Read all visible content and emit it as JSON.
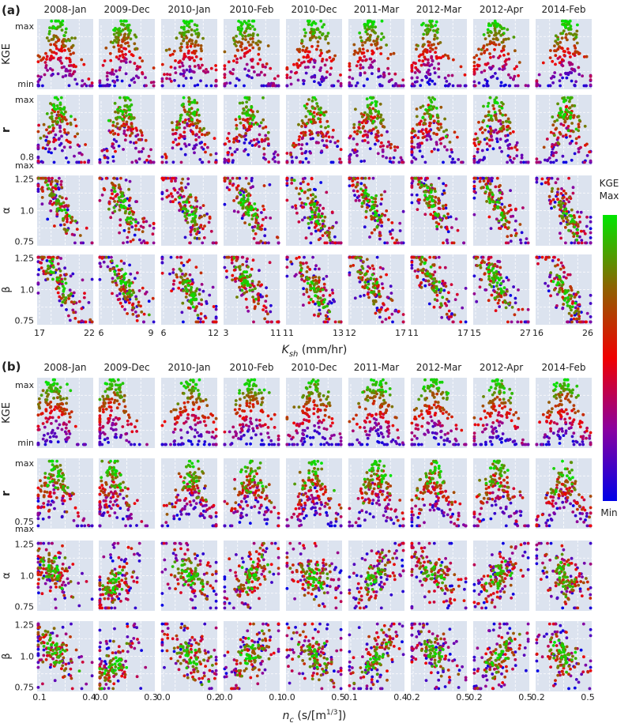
{
  "chart_data": [
    {
      "type": "scatter",
      "panel_label": "(a)",
      "columns": [
        "2008-Jan",
        "2009-Dec",
        "2010-Jan",
        "2010-Feb",
        "2010-Dec",
        "2011-Mar",
        "2012-Mar",
        "2012-Apr",
        "2014-Feb"
      ],
      "parameter": "Ksh",
      "xlabel_main": "K",
      "xlabel_sub": "sh",
      "xlabel_unit": " (mm/hr)",
      "x_ranges": [
        [
          17,
          22
        ],
        [
          6,
          9
        ],
        [
          6,
          12
        ],
        [
          3,
          11
        ],
        [
          11,
          13
        ],
        [
          12,
          17
        ],
        [
          11,
          17
        ],
        [
          15,
          27
        ],
        [
          16,
          26
        ]
      ],
      "x_optima": [
        0.38,
        0.45,
        0.5,
        0.42,
        0.5,
        0.4,
        0.35,
        0.4,
        0.55
      ],
      "rows": [
        {
          "metric": "KGE",
          "ticks": [
            {
              "label": "max",
              "pos": 0.9
            },
            {
              "label": "min",
              "pos": 0.08
            }
          ]
        },
        {
          "metric": "r",
          "ticks": [
            {
              "label": "max",
              "pos": 0.93
            },
            {
              "label": "0.8",
              "pos": 0.12
            },
            {
              "label": "max",
              "pos": 0.0
            }
          ]
        },
        {
          "metric": "α",
          "ticks": [
            {
              "label": "1.25",
              "pos": 0.95
            },
            {
              "label": "1.0",
              "pos": 0.5
            },
            {
              "label": "0.75",
              "pos": 0.06
            }
          ]
        },
        {
          "metric": "β",
          "ticks": [
            {
              "label": "1.25",
              "pos": 0.95
            },
            {
              "label": "1.0",
              "pos": 0.5
            },
            {
              "label": "0.75",
              "pos": 0.06
            }
          ]
        }
      ]
    },
    {
      "type": "scatter",
      "panel_label": "(b)",
      "columns": [
        "2008-Jan",
        "2009-Dec",
        "2010-Jan",
        "2010-Feb",
        "2010-Dec",
        "2011-Mar",
        "2012-Mar",
        "2012-Apr",
        "2014-Feb"
      ],
      "parameter": "nc",
      "xlabel_main": "n",
      "xlabel_sub": "c",
      "xlabel_unit": " (s/[m",
      "xlabel_sup": "1/3",
      "xlabel_end": "])",
      "x_ranges": [
        [
          0.1,
          0.4
        ],
        [
          0.0,
          0.3
        ],
        [
          0.0,
          0.2
        ],
        [
          0.0,
          0.1
        ],
        [
          0.0,
          0.5
        ],
        [
          0.1,
          0.4
        ],
        [
          0.2,
          0.5
        ],
        [
          0.2,
          0.5
        ],
        [
          0.2,
          0.5
        ]
      ],
      "x_optima": [
        0.3,
        0.25,
        0.55,
        0.5,
        0.5,
        0.5,
        0.4,
        0.45,
        0.5
      ],
      "rows": [
        {
          "metric": "KGE",
          "ticks": [
            {
              "label": "max",
              "pos": 0.9
            },
            {
              "label": "min",
              "pos": 0.08
            }
          ]
        },
        {
          "metric": "r",
          "ticks": [
            {
              "label": "max",
              "pos": 0.93
            },
            {
              "label": "0.75",
              "pos": 0.1
            },
            {
              "label": "max",
              "pos": 0.0
            }
          ]
        },
        {
          "metric": "α",
          "ticks": [
            {
              "label": "1.25",
              "pos": 0.95
            },
            {
              "label": "1.0",
              "pos": 0.5
            },
            {
              "label": "0.75",
              "pos": 0.06
            }
          ]
        },
        {
          "metric": "β",
          "ticks": [
            {
              "label": "1.25",
              "pos": 0.95
            },
            {
              "label": "1.0",
              "pos": 0.5
            },
            {
              "label": "0.75",
              "pos": 0.06
            }
          ]
        }
      ]
    }
  ],
  "colorbar": {
    "title_line1": "KGE",
    "title_line2": "Max",
    "min_label": "Min",
    "colors": [
      "#00e600",
      "#8c6400",
      "#f00000",
      "#8a00a0",
      "#0000e6"
    ]
  },
  "colors": {
    "panel_bg": "#dce3ef",
    "grid": "#ffffff"
  }
}
